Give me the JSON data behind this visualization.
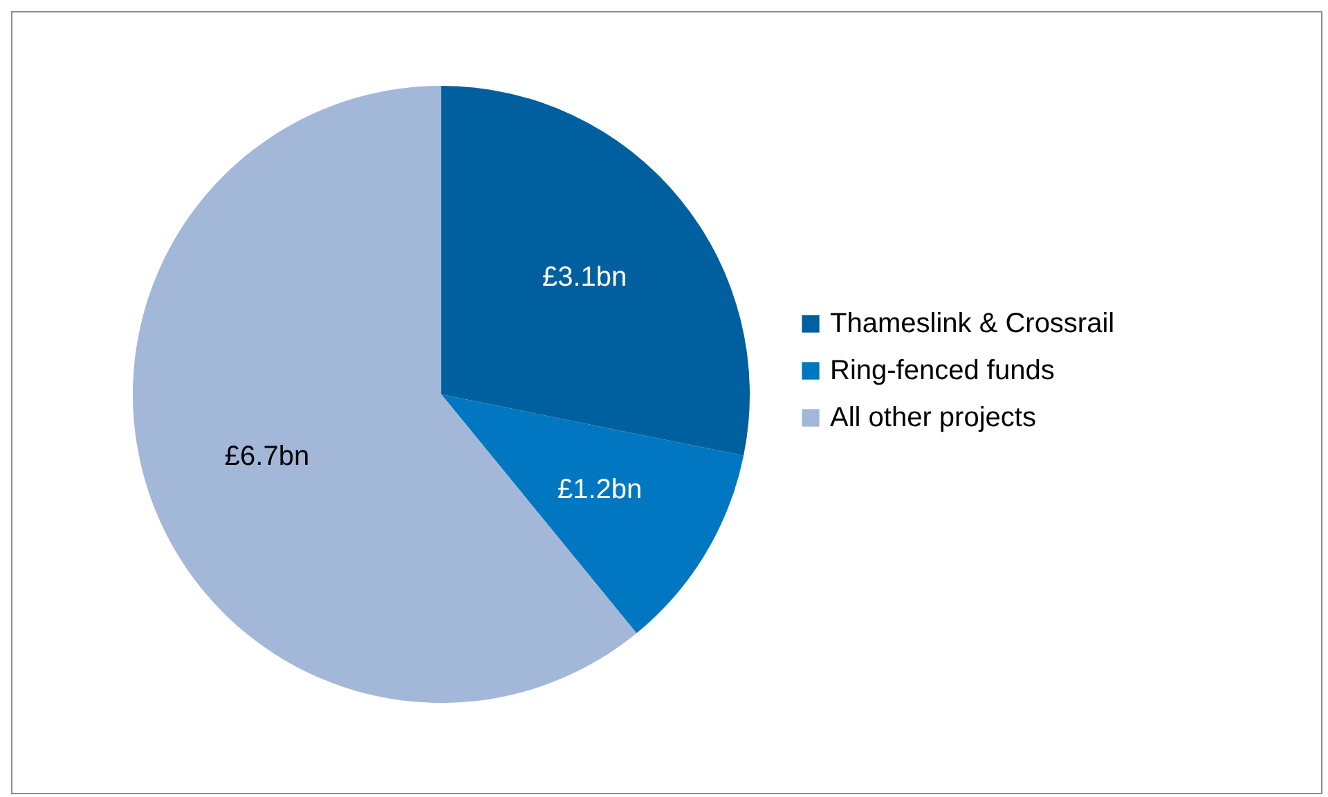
{
  "chart_data": {
    "type": "pie",
    "categories": [
      "Thameslink & Crossrail",
      "Ring-fenced funds",
      "All other projects"
    ],
    "values": [
      3.1,
      1.2,
      6.7
    ],
    "colors": [
      "#005f9e",
      "#0077c0",
      "#a3b7d9"
    ],
    "value_labels": [
      "£3.1bn",
      "£1.2bn",
      "£6.7bn"
    ],
    "legend": "right"
  }
}
